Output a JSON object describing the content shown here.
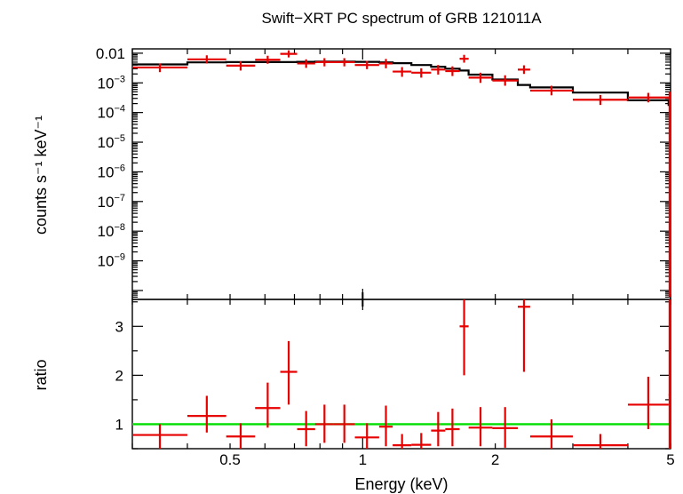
{
  "title": "Swift−XRT PC spectrum of GRB 121011A",
  "colors": {
    "data": "#e60000",
    "model": "#000000",
    "ratio_line": "#00dd00",
    "frame": "#000000"
  },
  "chart_data": [
    {
      "type": "scatter",
      "panel": "spectrum",
      "ylabel": "counts s⁻¹ keV⁻¹",
      "xlabel": "",
      "xscale": "log",
      "yscale": "log",
      "xlim": [
        0.3,
        5.0
      ],
      "ylim": [
        5e-11,
        0.014
      ],
      "yticks": [
        {
          "value": 0.01,
          "label": "0.01"
        },
        {
          "value": 0.001,
          "base": "10",
          "exp": "−3"
        },
        {
          "value": 0.0001,
          "base": "10",
          "exp": "−4"
        },
        {
          "value": 1e-05,
          "base": "10",
          "exp": "−5"
        },
        {
          "value": 1e-06,
          "base": "10",
          "exp": "−6"
        },
        {
          "value": 1e-07,
          "base": "10",
          "exp": "−7"
        },
        {
          "value": 1e-08,
          "base": "10",
          "exp": "−8"
        },
        {
          "value": 1e-09,
          "base": "10",
          "exp": "−9"
        }
      ],
      "series": [
        {
          "kind": "data",
          "points": [
            {
              "x0": 0.3,
              "x1": 0.4,
              "y": 0.0033,
              "ylo": 0.0023,
              "yhi": 0.0045
            },
            {
              "x0": 0.4,
              "x1": 0.49,
              "y": 0.0062,
              "ylo": 0.0045,
              "yhi": 0.0085
            },
            {
              "x0": 0.49,
              "x1": 0.57,
              "y": 0.0038,
              "ylo": 0.0026,
              "yhi": 0.0053
            },
            {
              "x0": 0.57,
              "x1": 0.65,
              "y": 0.006,
              "ylo": 0.0044,
              "yhi": 0.0082
            },
            {
              "x0": 0.65,
              "x1": 0.71,
              "y": 0.0095,
              "ylo": 0.0072,
              "yhi": 0.0125
            },
            {
              "x0": 0.71,
              "x1": 0.78,
              "y": 0.0045,
              "ylo": 0.0032,
              "yhi": 0.0062
            },
            {
              "x0": 0.78,
              "x1": 0.86,
              "y": 0.005,
              "ylo": 0.0036,
              "yhi": 0.0068
            },
            {
              "x0": 0.86,
              "x1": 0.96,
              "y": 0.005,
              "ylo": 0.0036,
              "yhi": 0.0068
            },
            {
              "x0": 0.96,
              "x1": 1.09,
              "y": 0.004,
              "ylo": 0.0029,
              "yhi": 0.0055
            },
            {
              "x0": 1.09,
              "x1": 1.17,
              "y": 0.0045,
              "ylo": 0.0031,
              "yhi": 0.0064
            },
            {
              "x0": 1.17,
              "x1": 1.29,
              "y": 0.0024,
              "ylo": 0.0016,
              "yhi": 0.0034
            },
            {
              "x0": 1.29,
              "x1": 1.43,
              "y": 0.0022,
              "ylo": 0.0015,
              "yhi": 0.0031
            },
            {
              "x0": 1.43,
              "x1": 1.54,
              "y": 0.0028,
              "ylo": 0.0019,
              "yhi": 0.004
            },
            {
              "x0": 1.54,
              "x1": 1.66,
              "y": 0.0025,
              "ylo": 0.0017,
              "yhi": 0.0036
            },
            {
              "x0": 1.66,
              "x1": 1.74,
              "y": 0.0065,
              "ylo": 0.0048,
              "yhi": 0.0088
            },
            {
              "x0": 1.74,
              "x1": 1.97,
              "y": 0.0015,
              "ylo": 0.001,
              "yhi": 0.0022
            },
            {
              "x0": 1.97,
              "x1": 2.25,
              "y": 0.0012,
              "ylo": 0.0008,
              "yhi": 0.0018
            },
            {
              "x0": 2.25,
              "x1": 2.4,
              "y": 0.0028,
              "ylo": 0.002,
              "yhi": 0.0039
            },
            {
              "x0": 2.4,
              "x1": 3.0,
              "y": 0.00055,
              "ylo": 0.00038,
              "yhi": 0.0008
            },
            {
              "x0": 3.0,
              "x1": 4.0,
              "y": 0.00027,
              "ylo": 0.00018,
              "yhi": 0.00039
            },
            {
              "x0": 4.0,
              "x1": 4.95,
              "y": 0.00032,
              "ylo": 0.00022,
              "yhi": 0.00046
            },
            {
              "x0": 4.95,
              "x1": 5.0,
              "y": 0.0003,
              "ylo": 6e-11,
              "yhi": 0.0005
            }
          ]
        },
        {
          "kind": "model",
          "steps": [
            {
              "x0": 0.3,
              "x1": 0.4,
              "y": 0.0042
            },
            {
              "x0": 0.4,
              "x1": 0.49,
              "y": 0.0049
            },
            {
              "x0": 0.49,
              "x1": 0.57,
              "y": 0.005
            },
            {
              "x0": 0.57,
              "x1": 0.65,
              "y": 0.005
            },
            {
              "x0": 0.65,
              "x1": 0.71,
              "y": 0.005
            },
            {
              "x0": 0.71,
              "x1": 0.78,
              "y": 0.0051
            },
            {
              "x0": 0.78,
              "x1": 0.86,
              "y": 0.0052
            },
            {
              "x0": 0.86,
              "x1": 0.96,
              "y": 0.0052
            },
            {
              "x0": 0.96,
              "x1": 1.09,
              "y": 0.0051
            },
            {
              "x0": 1.09,
              "x1": 1.17,
              "y": 0.0049
            },
            {
              "x0": 1.17,
              "x1": 1.29,
              "y": 0.0046
            },
            {
              "x0": 1.29,
              "x1": 1.43,
              "y": 0.004
            },
            {
              "x0": 1.43,
              "x1": 1.54,
              "y": 0.0035
            },
            {
              "x0": 1.54,
              "x1": 1.66,
              "y": 0.003
            },
            {
              "x0": 1.66,
              "x1": 1.74,
              "y": 0.0026
            },
            {
              "x0": 1.74,
              "x1": 1.97,
              "y": 0.0019
            },
            {
              "x0": 1.97,
              "x1": 2.25,
              "y": 0.0013
            },
            {
              "x0": 2.25,
              "x1": 2.4,
              "y": 0.00085
            },
            {
              "x0": 2.4,
              "x1": 3.0,
              "y": 0.0007
            },
            {
              "x0": 3.0,
              "x1": 4.0,
              "y": 0.00047
            },
            {
              "x0": 4.0,
              "x1": 4.95,
              "y": 0.00026
            },
            {
              "x0": 4.95,
              "x1": 5.0,
              "y": 0.00018
            }
          ]
        }
      ]
    },
    {
      "type": "scatter",
      "panel": "ratio",
      "ylabel": "ratio",
      "xlabel": "Energy (keV)",
      "xscale": "log",
      "xlim": [
        0.3,
        5.0
      ],
      "ylim": [
        0.5,
        3.55
      ],
      "yticks": [
        {
          "value": 1,
          "label": "1"
        },
        {
          "value": 2,
          "label": "2"
        },
        {
          "value": 3,
          "label": "3"
        }
      ],
      "xticks": [
        {
          "value": 0.5,
          "label": "0.5"
        },
        {
          "value": 1,
          "label": "1"
        },
        {
          "value": 2,
          "label": "2"
        },
        {
          "value": 5,
          "label": "5"
        }
      ],
      "reference_line": 1,
      "points": [
        {
          "x0": 0.3,
          "x1": 0.4,
          "y": 0.78,
          "ylo": 0.5,
          "yhi": 1.0
        },
        {
          "x0": 0.4,
          "x1": 0.49,
          "y": 1.17,
          "ylo": 0.83,
          "yhi": 1.58
        },
        {
          "x0": 0.49,
          "x1": 0.57,
          "y": 0.75,
          "ylo": 0.5,
          "yhi": 1.02
        },
        {
          "x0": 0.57,
          "x1": 0.65,
          "y": 1.33,
          "ylo": 0.93,
          "yhi": 1.85
        },
        {
          "x0": 0.65,
          "x1": 0.71,
          "y": 2.07,
          "ylo": 1.4,
          "yhi": 2.7
        },
        {
          "x0": 0.71,
          "x1": 0.78,
          "y": 0.9,
          "ylo": 0.55,
          "yhi": 1.27
        },
        {
          "x0": 0.78,
          "x1": 0.86,
          "y": 1.0,
          "ylo": 0.62,
          "yhi": 1.4
        },
        {
          "x0": 0.86,
          "x1": 0.96,
          "y": 1.0,
          "ylo": 0.62,
          "yhi": 1.4
        },
        {
          "x0": 0.96,
          "x1": 1.09,
          "y": 0.73,
          "ylo": 0.5,
          "yhi": 1.02
        },
        {
          "x0": 1.09,
          "x1": 1.17,
          "y": 0.95,
          "ylo": 0.55,
          "yhi": 1.38
        },
        {
          "x0": 1.17,
          "x1": 1.29,
          "y": 0.57,
          "ylo": 0.5,
          "yhi": 0.8
        },
        {
          "x0": 1.29,
          "x1": 1.43,
          "y": 0.58,
          "ylo": 0.5,
          "yhi": 0.82
        },
        {
          "x0": 1.43,
          "x1": 1.54,
          "y": 0.87,
          "ylo": 0.55,
          "yhi": 1.25
        },
        {
          "x0": 1.54,
          "x1": 1.66,
          "y": 0.9,
          "ylo": 0.55,
          "yhi": 1.32
        },
        {
          "x0": 1.66,
          "x1": 1.74,
          "y": 3.0,
          "ylo": 2.0,
          "yhi": 3.55
        },
        {
          "x0": 1.74,
          "x1": 1.97,
          "y": 0.93,
          "ylo": 0.55,
          "yhi": 1.35
        },
        {
          "x0": 1.97,
          "x1": 2.25,
          "y": 0.92,
          "ylo": 0.52,
          "yhi": 1.35
        },
        {
          "x0": 2.25,
          "x1": 2.4,
          "y": 3.4,
          "ylo": 2.07,
          "yhi": 3.55
        },
        {
          "x0": 2.4,
          "x1": 3.0,
          "y": 0.75,
          "ylo": 0.5,
          "yhi": 1.1
        },
        {
          "x0": 3.0,
          "x1": 4.0,
          "y": 0.57,
          "ylo": 0.5,
          "yhi": 0.8
        },
        {
          "x0": 4.0,
          "x1": 4.95,
          "y": 1.4,
          "ylo": 0.9,
          "yhi": 1.97
        },
        {
          "x0": 4.95,
          "x1": 5.0,
          "y": 1.6,
          "ylo": 0.5,
          "yhi": 3.55
        }
      ]
    }
  ]
}
